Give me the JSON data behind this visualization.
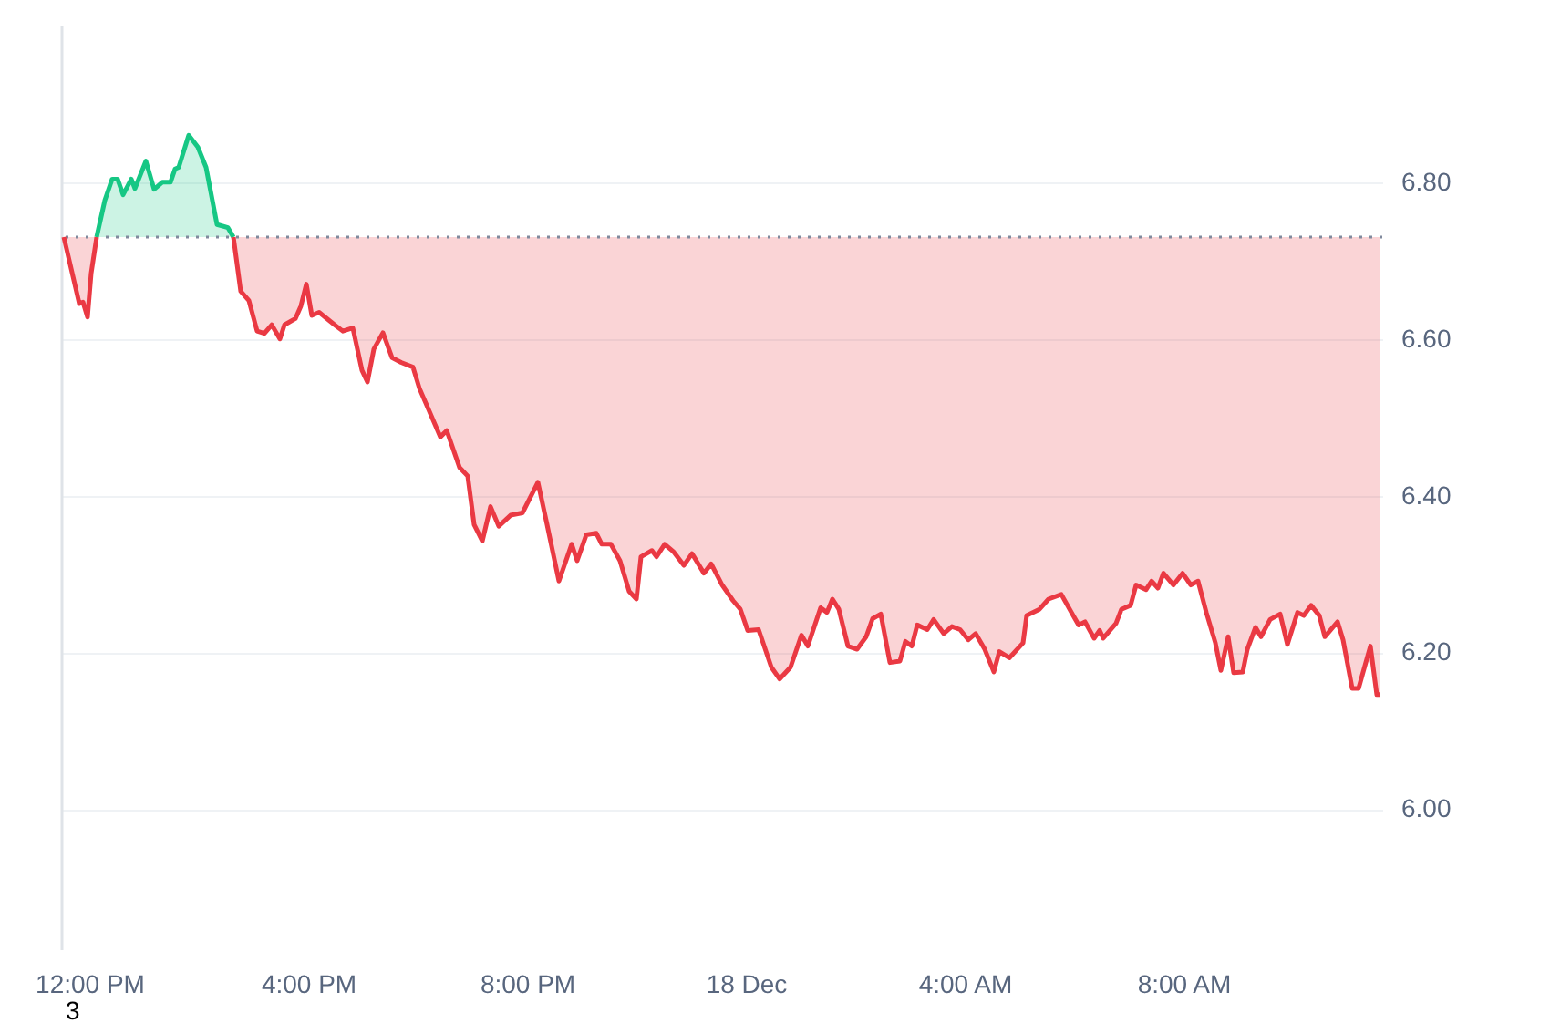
{
  "chart_data": {
    "type": "line",
    "xlim": [
      "--12-17T11:30",
      "--12-18T11:38"
    ],
    "ylim": [
      5.82,
      7.0
    ],
    "xticks": [
      {
        "value": "--12-17T12:00",
        "label": "12:00 PM"
      },
      {
        "value": "--12-17T16:00",
        "label": "4:00 PM"
      },
      {
        "value": "--12-17T20:00",
        "label": "8:00 PM"
      },
      {
        "value": "--12-18T00:00",
        "label": "18 Dec"
      },
      {
        "value": "--12-18T04:00",
        "label": "4:00 AM"
      },
      {
        "value": "--12-18T08:00",
        "label": "8:00 AM"
      }
    ],
    "yticks": [
      {
        "value": 6.0,
        "label": "6.00"
      },
      {
        "value": 6.2,
        "label": "6.20"
      },
      {
        "value": 6.4,
        "label": "6.40"
      },
      {
        "value": 6.6,
        "label": "6.60"
      },
      {
        "value": 6.8,
        "label": "6.80"
      }
    ],
    "grid": "y",
    "ref_lines": [
      {
        "axis": "y",
        "value": 6.73,
        "color": "#808a9d",
        "line_style": "dotted"
      }
    ],
    "annotations": [
      "3"
    ],
    "series": [
      {
        "color": "#16c784",
        "x": [
          "--12-17T12:08",
          "--12-17T12:17",
          "--12-17T12:25",
          "--12-17T12:31",
          "--12-17T12:37",
          "--12-17T12:46",
          "--12-17T12:50",
          "--12-17T13:02",
          "--12-17T13:11",
          "--12-17T13:20",
          "--12-17T13:29",
          "--12-17T13:34",
          "--12-17T13:38",
          "--12-17T13:49",
          "--12-17T13:59",
          "--12-17T14:08",
          "--12-17T14:20",
          "--12-17T14:32",
          "--12-17T14:38"
        ],
        "values": [
          6.73,
          6.777,
          6.804,
          6.804,
          6.784,
          6.804,
          6.792,
          6.827,
          6.791,
          6.8,
          6.8,
          6.817,
          6.819,
          6.86,
          6.845,
          6.819,
          6.746,
          6.742,
          6.73
        ],
        "lower": [
          6.73,
          6.73,
          6.73,
          6.73,
          6.73,
          6.73,
          6.73,
          6.73,
          6.73,
          6.73,
          6.73,
          6.73,
          6.73,
          6.73,
          6.73,
          6.73,
          6.73,
          6.73,
          6.73
        ],
        "upper": [
          6.73,
          6.777,
          6.804,
          6.804,
          6.784,
          6.804,
          6.792,
          6.827,
          6.791,
          6.8,
          6.8,
          6.817,
          6.819,
          6.86,
          6.845,
          6.819,
          6.746,
          6.742,
          6.73
        ]
      },
      {
        "color": "#ea3943",
        "x": [
          "--12-17T11:32",
          "--12-17T11:49",
          "--12-17T11:53",
          "--12-17T11:58",
          "--12-17T12:02",
          "--12-17T12:08",
          "--12-17T13:24",
          "--12-17T14:38",
          "--12-17T14:46",
          "--12-17T14:55",
          "--12-17T15:04",
          "--12-17T15:12",
          "--12-17T15:20",
          "--12-17T15:29",
          "--12-17T15:34",
          "--12-17T15:46",
          "--12-17T15:52",
          "--12-17T15:58",
          "--12-17T16:04",
          "--12-17T16:12",
          "--12-17T16:29",
          "--12-17T16:38",
          "--12-17T16:49",
          "--12-17T16:59",
          "--12-17T17:05",
          "--12-17T17:12",
          "--12-17T17:22",
          "--12-17T17:32",
          "--12-17T17:42",
          "--12-17T17:55",
          "--12-17T18:02",
          "--12-17T18:12",
          "--12-17T18:25",
          "--12-17T18:32",
          "--12-17T18:46",
          "--12-17T18:55",
          "--12-17T19:02",
          "--12-17T19:11",
          "--12-17T19:20",
          "--12-17T19:29",
          "--12-17T19:42",
          "--12-17T19:55",
          "--12-17T20:12",
          "--12-17T20:22",
          "--12-17T20:35",
          "--12-17T20:49",
          "--12-17T20:55",
          "--12-17T21:05",
          "--12-17T21:16",
          "--12-17T21:22",
          "--12-17T21:32",
          "--12-17T21:42",
          "--12-17T21:52",
          "--12-17T22:00",
          "--12-17T22:05",
          "--12-17T22:17",
          "--12-17T22:22",
          "--12-17T22:31",
          "--12-17T22:41",
          "--12-17T22:52",
          "--12-17T23:01",
          "--12-17T23:14",
          "--12-17T23:22",
          "--12-17T23:34",
          "--12-17T23:46",
          "--12-17T23:54",
          "--12-18T00:02",
          "--12-18T00:14",
          "--12-18T00:28",
          "--12-18T00:37",
          "--12-18T00:49",
          "--12-18T01:01",
          "--12-18T01:08",
          "--12-18T01:22",
          "--12-18T01:29",
          "--12-18T01:35",
          "--12-18T01:42",
          "--12-18T01:52",
          "--12-18T02:02",
          "--12-18T02:12",
          "--12-18T02:19",
          "--12-18T02:28",
          "--12-18T02:38",
          "--12-18T02:49",
          "--12-18T02:55",
          "--12-18T03:02",
          "--12-18T03:08",
          "--12-18T03:19",
          "--12-18T03:26",
          "--12-18T03:37",
          "--12-18T03:46",
          "--12-18T03:55",
          "--12-18T04:04",
          "--12-18T04:12",
          "--12-18T04:22",
          "--12-18T04:32",
          "--12-18T04:38",
          "--12-18T04:49",
          "--12-18T05:04",
          "--12-18T05:08",
          "--12-18T05:22",
          "--12-18T05:32",
          "--12-18T05:46",
          "--12-18T05:59",
          "--12-18T06:05",
          "--12-18T06:12",
          "--12-18T06:22",
          "--12-18T06:28",
          "--12-18T06:32",
          "--12-18T06:46",
          "--12-18T06:52",
          "--12-18T07:02",
          "--12-18T07:08",
          "--12-18T07:19",
          "--12-18T07:25",
          "--12-18T07:32",
          "--12-18T07:38",
          "--12-18T07:49",
          "--12-18T07:59",
          "--12-18T08:08",
          "--12-18T08:16",
          "--12-18T08:25",
          "--12-18T08:35",
          "--12-18T08:41",
          "--12-18T08:49",
          "--12-18T08:55",
          "--12-18T09:05",
          "--12-18T09:10",
          "--12-18T09:19",
          "--12-18T09:25",
          "--12-18T09:35",
          "--12-18T09:46",
          "--12-18T09:54",
          "--12-18T10:05",
          "--12-18T10:12",
          "--12-18T10:20",
          "--12-18T10:29",
          "--12-18T10:35",
          "--12-18T10:49",
          "--12-18T10:55",
          "--12-18T11:05",
          "--12-18T11:12",
          "--12-18T11:25",
          "--12-18T11:32",
          "--12-18T11:35"
        ],
        "values": [
          6.73,
          6.645,
          6.647,
          6.628,
          6.684,
          6.73,
          null,
          6.73,
          6.661,
          6.649,
          6.61,
          6.607,
          6.618,
          6.6,
          6.618,
          6.626,
          6.642,
          6.67,
          6.63,
          6.634,
          6.618,
          6.61,
          6.614,
          6.56,
          6.545,
          6.587,
          6.608,
          6.576,
          6.57,
          6.564,
          6.537,
          6.51,
          6.475,
          6.483,
          6.436,
          6.425,
          6.363,
          6.342,
          6.386,
          6.361,
          6.375,
          6.378,
          6.417,
          6.363,
          6.291,
          6.338,
          6.317,
          6.35,
          6.352,
          6.338,
          6.338,
          6.317,
          6.278,
          6.268,
          6.322,
          6.33,
          6.322,
          6.338,
          6.328,
          6.311,
          6.326,
          6.301,
          6.313,
          6.286,
          6.266,
          6.255,
          6.228,
          6.229,
          6.181,
          6.166,
          6.181,
          6.222,
          6.208,
          6.257,
          6.251,
          6.268,
          6.255,
          6.208,
          6.204,
          6.22,
          6.243,
          6.249,
          6.187,
          6.189,
          6.214,
          6.208,
          6.235,
          6.229,
          6.242,
          6.224,
          6.233,
          6.229,
          6.216,
          6.224,
          6.204,
          6.175,
          6.201,
          6.193,
          6.212,
          6.247,
          6.255,
          6.268,
          6.274,
          6.247,
          6.235,
          6.239,
          6.218,
          6.228,
          6.218,
          6.237,
          6.255,
          6.26,
          6.286,
          6.28,
          6.291,
          6.282,
          6.301,
          6.286,
          6.301,
          6.286,
          6.291,
          6.251,
          6.212,
          6.177,
          6.22,
          6.174,
          6.175,
          6.204,
          6.232,
          6.22,
          6.242,
          6.249,
          6.21,
          6.251,
          6.247,
          6.26,
          6.247,
          6.22,
          6.239,
          6.216,
          6.154,
          6.154,
          6.208,
          6.146,
          6.146
        ],
        "lower": [
          6.73,
          6.645,
          6.647,
          6.628,
          6.684,
          6.73,
          null,
          6.73,
          6.661,
          6.649,
          6.61,
          6.607,
          6.618,
          6.6,
          6.618,
          6.626,
          6.642,
          6.67,
          6.63,
          6.634,
          6.618,
          6.61,
          6.614,
          6.56,
          6.545,
          6.587,
          6.608,
          6.576,
          6.57,
          6.564,
          6.537,
          6.51,
          6.475,
          6.483,
          6.436,
          6.425,
          6.363,
          6.342,
          6.386,
          6.361,
          6.375,
          6.378,
          6.417,
          6.363,
          6.291,
          6.338,
          6.317,
          6.35,
          6.352,
          6.338,
          6.338,
          6.317,
          6.278,
          6.268,
          6.322,
          6.33,
          6.322,
          6.338,
          6.328,
          6.311,
          6.326,
          6.301,
          6.313,
          6.286,
          6.266,
          6.255,
          6.228,
          6.229,
          6.181,
          6.166,
          6.181,
          6.222,
          6.208,
          6.257,
          6.251,
          6.268,
          6.255,
          6.208,
          6.204,
          6.22,
          6.243,
          6.249,
          6.187,
          6.189,
          6.214,
          6.208,
          6.235,
          6.229,
          6.242,
          6.224,
          6.233,
          6.229,
          6.216,
          6.224,
          6.204,
          6.175,
          6.201,
          6.193,
          6.212,
          6.247,
          6.255,
          6.268,
          6.274,
          6.247,
          6.235,
          6.239,
          6.218,
          6.228,
          6.218,
          6.237,
          6.255,
          6.26,
          6.286,
          6.28,
          6.291,
          6.282,
          6.301,
          6.286,
          6.301,
          6.286,
          6.291,
          6.251,
          6.212,
          6.177,
          6.22,
          6.174,
          6.175,
          6.204,
          6.232,
          6.22,
          6.242,
          6.249,
          6.21,
          6.251,
          6.247,
          6.26,
          6.247,
          6.22,
          6.239,
          6.216,
          6.154,
          6.154,
          6.208,
          6.146,
          6.146
        ],
        "upper": [
          6.73,
          6.73,
          6.73,
          6.73,
          6.73,
          6.73,
          null,
          6.73,
          6.73,
          6.73,
          6.73,
          6.73,
          6.73,
          6.73,
          6.73,
          6.73,
          6.73,
          6.73,
          6.73,
          6.73,
          6.73,
          6.73,
          6.73,
          6.73,
          6.73,
          6.73,
          6.73,
          6.73,
          6.73,
          6.73,
          6.73,
          6.73,
          6.73,
          6.73,
          6.73,
          6.73,
          6.73,
          6.73,
          6.73,
          6.73,
          6.73,
          6.73,
          6.73,
          6.73,
          6.73,
          6.73,
          6.73,
          6.73,
          6.73,
          6.73,
          6.73,
          6.73,
          6.73,
          6.73,
          6.73,
          6.73,
          6.73,
          6.73,
          6.73,
          6.73,
          6.73,
          6.73,
          6.73,
          6.73,
          6.73,
          6.73,
          6.73,
          6.73,
          6.73,
          6.73,
          6.73,
          6.73,
          6.73,
          6.73,
          6.73,
          6.73,
          6.73,
          6.73,
          6.73,
          6.73,
          6.73,
          6.73,
          6.73,
          6.73,
          6.73,
          6.73,
          6.73,
          6.73,
          6.73,
          6.73,
          6.73,
          6.73,
          6.73,
          6.73,
          6.73,
          6.73,
          6.73,
          6.73,
          6.73,
          6.73,
          6.73,
          6.73,
          6.73,
          6.73,
          6.73,
          6.73,
          6.73,
          6.73,
          6.73,
          6.73,
          6.73,
          6.73,
          6.73,
          6.73,
          6.73,
          6.73,
          6.73,
          6.73,
          6.73,
          6.73,
          6.73,
          6.73,
          6.73,
          6.73,
          6.73,
          6.73,
          6.73,
          6.73,
          6.73,
          6.73,
          6.73,
          6.73,
          6.73,
          6.73,
          6.73,
          6.73,
          6.73,
          6.73,
          6.73,
          6.73,
          6.73,
          6.73,
          6.73,
          6.73,
          6.73
        ]
      }
    ]
  }
}
